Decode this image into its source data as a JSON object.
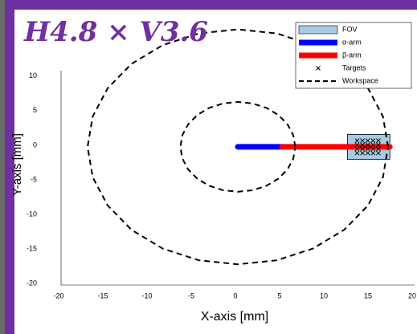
{
  "chart_data": {
    "type": "line",
    "title": "H4.8 × V3.6",
    "xlabel": "X-axis [mm]",
    "ylabel": "Y-axis [mm]",
    "xlim": [
      -20,
      20
    ],
    "ylim": [
      -20,
      18
    ],
    "xticks": [
      -20,
      -15,
      -10,
      -5,
      0,
      5,
      10,
      15,
      20
    ],
    "yticks": [
      -20,
      -15,
      -10,
      -5,
      0,
      5,
      10
    ],
    "legend": "upper right",
    "series": [
      {
        "name": "FOV",
        "kind": "rect",
        "color": "#a6cbe3",
        "x": [
          12.4,
          17.2
        ],
        "values": [
          -1.8,
          1.8
        ]
      },
      {
        "name": "α-arm",
        "kind": "line",
        "style": "solid",
        "color": "#0000ff",
        "x": [
          0,
          5
        ],
        "values": [
          0,
          0
        ]
      },
      {
        "name": "β-arm",
        "kind": "line",
        "style": "solid",
        "color": "#ff0000",
        "x": [
          5,
          17.2
        ],
        "values": [
          0,
          0
        ]
      },
      {
        "name": "Targets",
        "kind": "scatter",
        "color": "#000000",
        "x": [
          13.5,
          14.1,
          14.7,
          15.3,
          15.9,
          13.5,
          14.1,
          14.7,
          15.3,
          15.9,
          13.5,
          14.1,
          14.7,
          15.3,
          15.9,
          13.5,
          14.1,
          14.7,
          15.3,
          15.9
        ],
        "values": [
          -0.9,
          -0.9,
          -0.9,
          -0.9,
          -0.9,
          -0.3,
          -0.3,
          -0.3,
          -0.3,
          -0.3,
          0.3,
          0.3,
          0.3,
          0.3,
          0.3,
          0.9,
          0.9,
          0.9,
          0.9,
          0.9
        ]
      },
      {
        "name": "Workspace",
        "kind": "line",
        "style": "dashed",
        "color": "#000000",
        "x": [
          17,
          16.42,
          14.72,
          12.02,
          8.5,
          4.4,
          0,
          -4.4,
          -8.5,
          -12.02,
          -14.72,
          -16.42,
          -17,
          -16.42,
          -14.72,
          -12.02,
          -8.5,
          -4.4,
          0,
          4.4,
          8.5,
          12.02,
          14.72,
          16.42,
          17,
          null,
          6.5,
          6.28,
          5.63,
          4.6,
          3.25,
          1.68,
          0,
          -1.68,
          -3.25,
          -4.6,
          -5.63,
          -6.28,
          -6.5,
          -6.28,
          -5.63,
          -4.6,
          -3.25,
          -1.68,
          0,
          1.68,
          3.25,
          4.6,
          5.63,
          6.28,
          6.5
        ],
        "values": [
          0,
          4.4,
          8.5,
          12.02,
          14.72,
          16.42,
          17,
          16.42,
          14.72,
          12.02,
          8.5,
          4.4,
          0,
          -4.4,
          -8.5,
          -12.02,
          -14.72,
          -16.42,
          -17,
          -16.42,
          -14.72,
          -12.02,
          -8.5,
          -4.4,
          0,
          null,
          0,
          1.68,
          3.25,
          4.6,
          5.63,
          6.28,
          6.5,
          6.28,
          5.63,
          4.6,
          3.25,
          1.68,
          0,
          -1.68,
          -3.25,
          -4.6,
          -5.63,
          -6.28,
          -6.5,
          -6.28,
          -5.63,
          -4.6,
          -3.25,
          -1.68,
          0
        ]
      }
    ]
  }
}
